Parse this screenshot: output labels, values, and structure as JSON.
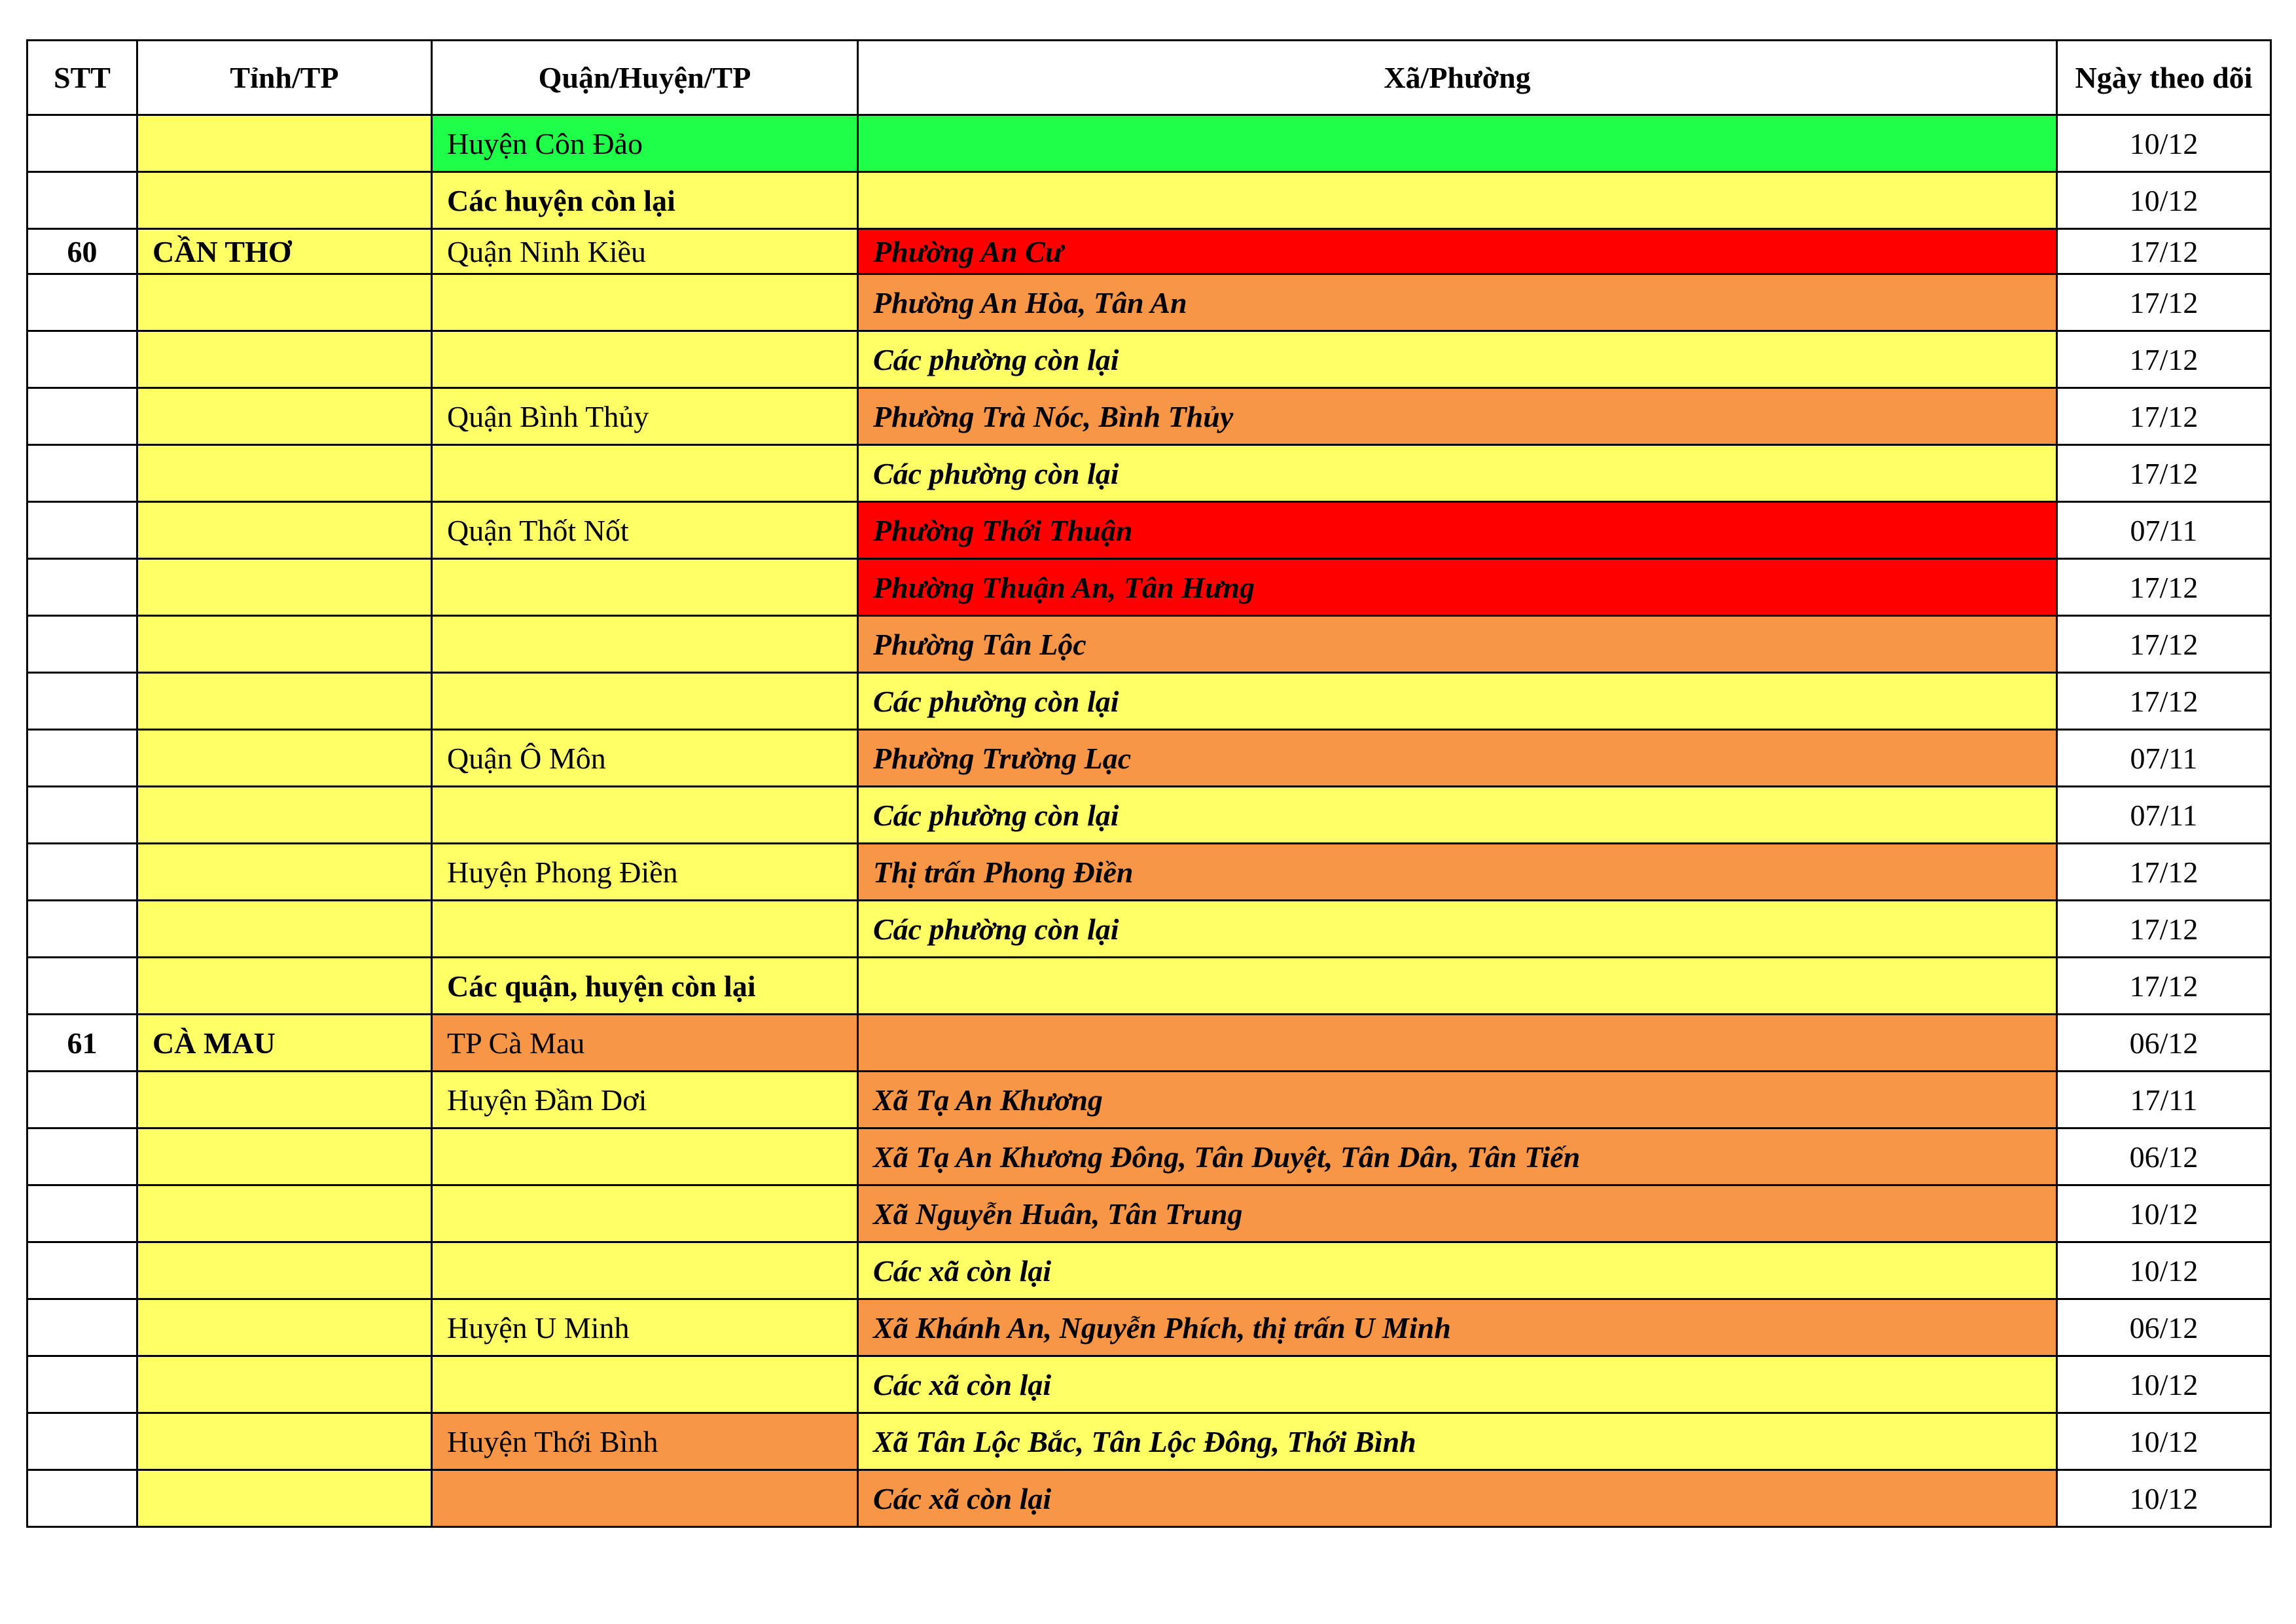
{
  "colors": {
    "yellow": "#FFFF66",
    "orange": "#F79646",
    "red": "#FF0000",
    "green": "#1FFF4A",
    "white": "#FFFFFF"
  },
  "headers": [
    "STT",
    "Tỉnh/TP",
    "Quận/Huyện/TP",
    "Xã/Phường",
    "Ngày theo dõi"
  ],
  "rows": [
    {
      "stt": "",
      "tinh": "",
      "quan": "Huyện Côn Đảo",
      "xa": "",
      "ngay": "10/12",
      "quan_bg": "green",
      "xa_bg": "green"
    },
    {
      "stt": "",
      "tinh": "",
      "quan": "Các huyện còn lại",
      "quan_bold": true,
      "xa": "",
      "ngay": "10/12",
      "quan_bg": "yellow",
      "xa_bg": "yellow"
    },
    {
      "stt": "60",
      "tinh": "CẦN THƠ",
      "quan": "Quận Ninh Kiều",
      "xa": "Phường An Cư",
      "ngay": "17/12",
      "quan_bg": "yellow",
      "xa_bg": "red",
      "short": true
    },
    {
      "stt": "",
      "tinh": "",
      "quan": "",
      "xa": "Phường An Hòa, Tân An",
      "ngay": "17/12",
      "quan_bg": "yellow",
      "xa_bg": "orange"
    },
    {
      "stt": "",
      "tinh": "",
      "quan": "",
      "xa": "Các phường còn lại",
      "ngay": "17/12",
      "quan_bg": "yellow",
      "xa_bg": "yellow"
    },
    {
      "stt": "",
      "tinh": "",
      "quan": "Quận Bình Thủy",
      "xa": "Phường Trà Nóc, Bình Thủy",
      "ngay": "17/12",
      "quan_bg": "yellow",
      "xa_bg": "orange"
    },
    {
      "stt": "",
      "tinh": "",
      "quan": "",
      "xa": "Các phường còn lại",
      "ngay": "17/12",
      "quan_bg": "yellow",
      "xa_bg": "yellow"
    },
    {
      "stt": "",
      "tinh": "",
      "quan": "Quận Thốt Nốt",
      "xa": "Phường Thới Thuận",
      "ngay": "07/11",
      "quan_bg": "yellow",
      "xa_bg": "red"
    },
    {
      "stt": "",
      "tinh": "",
      "quan": "",
      "xa": "Phường Thuận An, Tân Hưng",
      "ngay": "17/12",
      "quan_bg": "yellow",
      "xa_bg": "red"
    },
    {
      "stt": "",
      "tinh": "",
      "quan": "",
      "xa": "Phường Tân Lộc",
      "ngay": "17/12",
      "quan_bg": "yellow",
      "xa_bg": "orange"
    },
    {
      "stt": "",
      "tinh": "",
      "quan": "",
      "xa": "Các phường còn lại",
      "ngay": "17/12",
      "quan_bg": "yellow",
      "xa_bg": "yellow"
    },
    {
      "stt": "",
      "tinh": "",
      "quan": "Quận Ô Môn",
      "xa": "Phường Trường Lạc",
      "ngay": "07/11",
      "quan_bg": "yellow",
      "xa_bg": "orange"
    },
    {
      "stt": "",
      "tinh": "",
      "quan": "",
      "xa": "Các phường còn lại",
      "ngay": "07/11",
      "quan_bg": "yellow",
      "xa_bg": "yellow"
    },
    {
      "stt": "",
      "tinh": "",
      "quan": "Huyện Phong Điền",
      "xa": "Thị trấn Phong Điền",
      "ngay": "17/12",
      "quan_bg": "yellow",
      "xa_bg": "orange"
    },
    {
      "stt": "",
      "tinh": "",
      "quan": "",
      "xa": "Các phường còn lại",
      "ngay": "17/12",
      "quan_bg": "yellow",
      "xa_bg": "yellow"
    },
    {
      "stt": "",
      "tinh": "",
      "quan": "Các quận, huyện còn lại",
      "quan_bold": true,
      "xa": "",
      "ngay": "17/12",
      "quan_bg": "yellow",
      "xa_bg": "yellow"
    },
    {
      "stt": "61",
      "tinh": "CÀ MAU",
      "quan": "TP Cà Mau",
      "xa": "",
      "ngay": "06/12",
      "quan_bg": "orange",
      "xa_bg": "orange"
    },
    {
      "stt": "",
      "tinh": "",
      "quan": "Huyện Đầm Dơi",
      "xa": "Xã Tạ An Khương",
      "ngay": "17/11",
      "quan_bg": "yellow",
      "xa_bg": "orange"
    },
    {
      "stt": "",
      "tinh": "",
      "quan": "",
      "xa": "Xã Tạ An Khương Đông, Tân Duyệt, Tân Dân, Tân Tiến",
      "ngay": "06/12",
      "quan_bg": "yellow",
      "xa_bg": "orange"
    },
    {
      "stt": "",
      "tinh": "",
      "quan": "",
      "xa": "Xã Nguyễn Huân, Tân Trung",
      "ngay": "10/12",
      "quan_bg": "yellow",
      "xa_bg": "orange"
    },
    {
      "stt": "",
      "tinh": "",
      "quan": "",
      "xa": "Các xã còn lại",
      "ngay": "10/12",
      "quan_bg": "yellow",
      "xa_bg": "yellow"
    },
    {
      "stt": "",
      "tinh": "",
      "quan": "Huyện U Minh",
      "xa": "Xã Khánh An, Nguyễn Phích, thị trấn U Minh",
      "ngay": "06/12",
      "quan_bg": "yellow",
      "xa_bg": "orange"
    },
    {
      "stt": "",
      "tinh": "",
      "quan": "",
      "xa": "Các xã còn lại",
      "ngay": "10/12",
      "quan_bg": "yellow",
      "xa_bg": "yellow"
    },
    {
      "stt": "",
      "tinh": "",
      "quan": "Huyện Thới Bình",
      "xa": "Xã Tân Lộc Bắc, Tân Lộc Đông, Thới Bình",
      "ngay": "10/12",
      "quan_bg": "orange",
      "xa_bg": "yellow"
    },
    {
      "stt": "",
      "tinh": "",
      "quan": "",
      "xa": "Các xã còn lại",
      "ngay": "10/12",
      "quan_bg": "orange",
      "xa_bg": "orange"
    }
  ]
}
